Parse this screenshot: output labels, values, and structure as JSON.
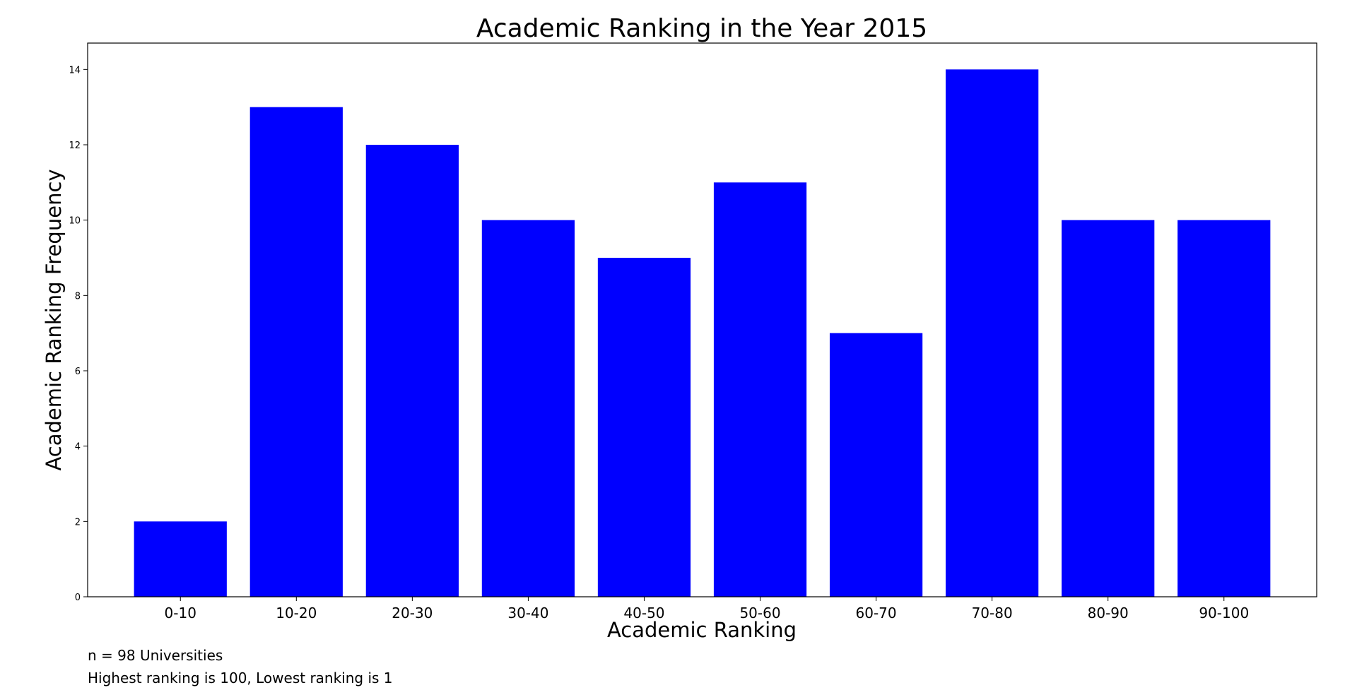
{
  "chart_data": {
    "type": "bar",
    "title": "Academic Ranking in the Year 2015",
    "xlabel": "Academic Ranking",
    "ylabel": "Academic Ranking Frequency",
    "categories": [
      "0-10",
      "10-20",
      "20-30",
      "30-40",
      "40-50",
      "50-60",
      "60-70",
      "70-80",
      "80-90",
      "90-100"
    ],
    "values": [
      2,
      13,
      12,
      10,
      9,
      11,
      7,
      14,
      10,
      10
    ],
    "ylim": [
      0,
      14.7
    ],
    "yticks": [
      "0",
      "2",
      "4",
      "6",
      "8",
      "10",
      "12",
      "14"
    ],
    "bar_color": "#0000ff",
    "grid": false,
    "legend": "none"
  },
  "notes": {
    "sample_size": "n = 98 Universities",
    "ranking_scale": "Highest ranking is 100, Lowest ranking is 1"
  }
}
